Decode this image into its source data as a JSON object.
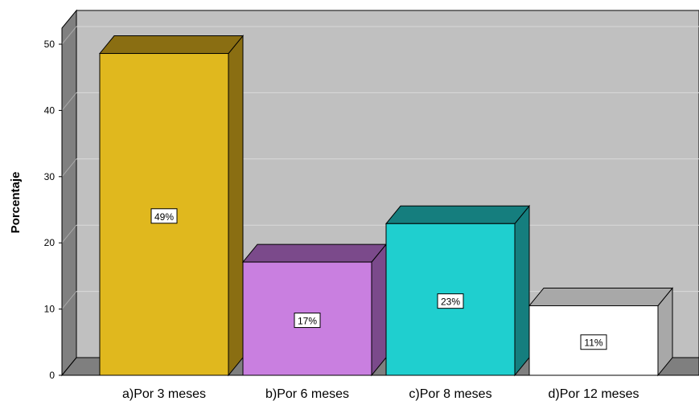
{
  "chart_data": {
    "type": "bar",
    "style": "3d",
    "categories": [
      "a)Por 3 meses",
      "b)Por 6 meses",
      "c)Por 8 meses",
      "d)Por 12 meses"
    ],
    "values": [
      48.6,
      17.1,
      22.9,
      10.5
    ],
    "data_labels": [
      "49%",
      "17%",
      "23%",
      "11%"
    ],
    "colors": [
      {
        "front": "#e0b81e",
        "top": "#8a6e12",
        "side": "#8a6e12"
      },
      {
        "front": "#c97fe0",
        "top": "#7b4a8b",
        "side": "#7b4a8b"
      },
      {
        "front": "#1fcfcf",
        "top": "#157e7e",
        "side": "#157e7e"
      },
      {
        "front": "#ffffff",
        "top": "#a8a8a8",
        "side": "#a8a8a8"
      }
    ],
    "title": "",
    "xlabel": "",
    "ylabel": "Porcentaje",
    "ylim": [
      0,
      50
    ],
    "yticks": [
      0,
      10,
      20,
      30,
      40,
      50
    ],
    "grid": true,
    "background_color": "#c0c0c0"
  }
}
